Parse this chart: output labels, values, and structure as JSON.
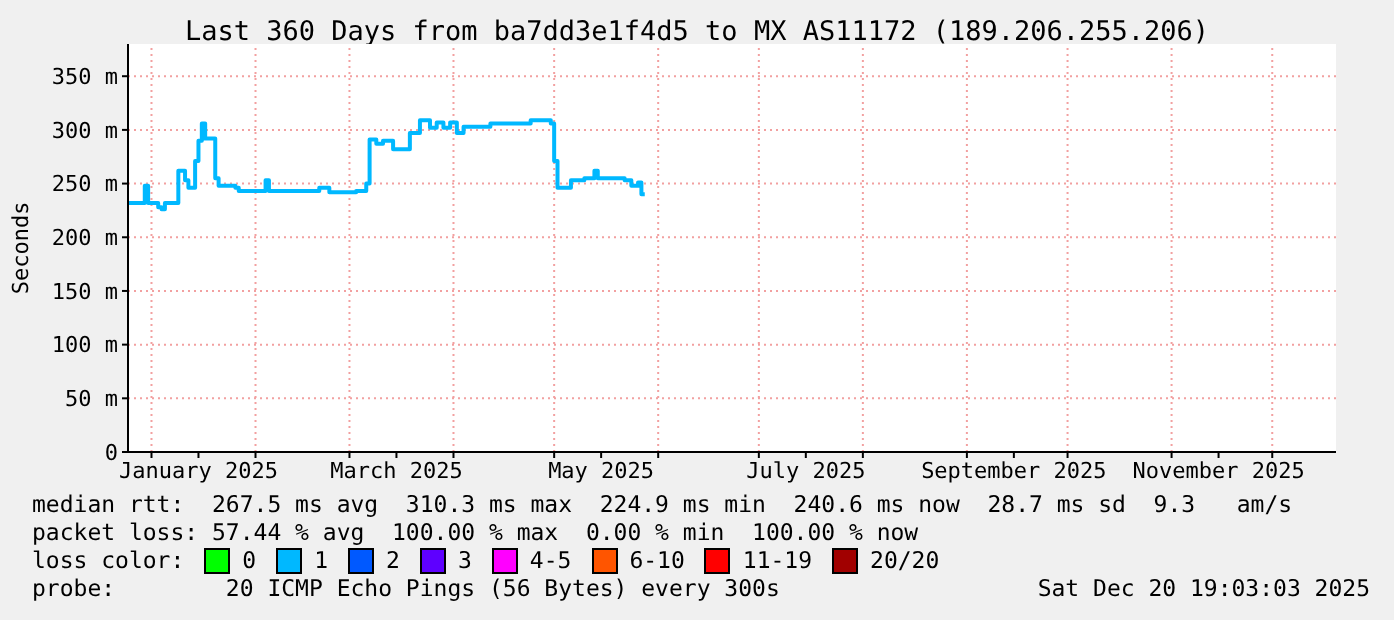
{
  "chart_data": {
    "type": "step",
    "title": "Last 360 Days from ba7dd3e1f4d5 to MX AS11172 (189.206.255.206)",
    "ylabel": "Seconds",
    "x": [
      "2024-12-25",
      "2024-12-30",
      "2024-12-31",
      "2025-01-03",
      "2025-01-04",
      "2025-01-05",
      "2025-01-09",
      "2025-01-11",
      "2025-01-12",
      "2025-01-14",
      "2025-01-15",
      "2025-01-16",
      "2025-01-17",
      "2025-01-20",
      "2025-01-21",
      "2025-01-26",
      "2025-01-27",
      "2025-02-04",
      "2025-02-05",
      "2025-02-20",
      "2025-02-23",
      "2025-03-03",
      "2025-03-06",
      "2025-03-07",
      "2025-03-09",
      "2025-03-11",
      "2025-03-14",
      "2025-03-19",
      "2025-03-22",
      "2025-03-25",
      "2025-03-27",
      "2025-03-29",
      "2025-03-31",
      "2025-04-02",
      "2025-04-04",
      "2025-04-12",
      "2025-04-24",
      "2025-04-30",
      "2025-05-01",
      "2025-05-02",
      "2025-05-06",
      "2025-05-10",
      "2025-05-13",
      "2025-05-14",
      "2025-05-22",
      "2025-05-24",
      "2025-05-26",
      "2025-05-27",
      "2025-05-28"
    ],
    "legend_title": "loss color:",
    "legend": "bottom",
    "series": [
      {
        "name": "0",
        "color": "#00ff00",
        "values": [
          null,
          null,
          null,
          null,
          null,
          null,
          null,
          null,
          null,
          null,
          null,
          null,
          null,
          null,
          null,
          null,
          null,
          null,
          null,
          null,
          null,
          null,
          null,
          null,
          null,
          null,
          null,
          null,
          null,
          null,
          null,
          null,
          null,
          null,
          null,
          null,
          null,
          null,
          null,
          null,
          null,
          null,
          null,
          null,
          null,
          null,
          null,
          null,
          null
        ]
      },
      {
        "name": "1",
        "color": "#00b8ff",
        "values": [
          232,
          248,
          232,
          228,
          226,
          232,
          262,
          253,
          246,
          271,
          290,
          306,
          292,
          255,
          248,
          246,
          243,
          253,
          243,
          246,
          242,
          243,
          250,
          291,
          287,
          290,
          282,
          297,
          309,
          302,
          307,
          302,
          307,
          297,
          303,
          306,
          309,
          306,
          271,
          246,
          253,
          255,
          262,
          255,
          253,
          248,
          251,
          240,
          240
        ]
      },
      {
        "name": "2",
        "color": "#0059ff",
        "values": [
          null,
          null,
          null,
          null,
          null,
          null,
          null,
          null,
          null,
          null,
          null,
          null,
          null,
          null,
          null,
          null,
          null,
          null,
          null,
          null,
          null,
          null,
          null,
          null,
          null,
          null,
          null,
          null,
          null,
          null,
          null,
          null,
          null,
          null,
          null,
          null,
          null,
          null,
          null,
          null,
          null,
          null,
          null,
          null,
          null,
          null,
          null,
          null,
          null
        ]
      },
      {
        "name": "3",
        "color": "#5e00ff",
        "values": [
          null,
          null,
          null,
          null,
          null,
          null,
          null,
          null,
          null,
          null,
          null,
          null,
          null,
          null,
          null,
          null,
          null,
          null,
          null,
          null,
          null,
          null,
          null,
          null,
          null,
          null,
          null,
          null,
          null,
          null,
          null,
          null,
          null,
          null,
          null,
          null,
          null,
          null,
          null,
          null,
          null,
          null,
          null,
          null,
          null,
          null,
          null,
          null,
          null
        ]
      },
      {
        "name": "4-5",
        "color": "#ff00ff",
        "values": [
          null,
          null,
          null,
          null,
          null,
          null,
          null,
          null,
          null,
          null,
          null,
          null,
          null,
          null,
          null,
          null,
          null,
          null,
          null,
          null,
          null,
          null,
          null,
          null,
          null,
          null,
          null,
          null,
          null,
          null,
          null,
          null,
          null,
          null,
          null,
          null,
          null,
          null,
          null,
          null,
          null,
          null,
          null,
          null,
          null,
          null,
          null,
          null,
          null
        ]
      },
      {
        "name": "6-10",
        "color": "#ff5500",
        "values": [
          null,
          null,
          null,
          null,
          null,
          null,
          null,
          null,
          null,
          null,
          null,
          null,
          null,
          null,
          null,
          null,
          null,
          null,
          null,
          null,
          null,
          null,
          null,
          null,
          null,
          null,
          null,
          null,
          null,
          null,
          null,
          null,
          null,
          null,
          null,
          null,
          null,
          null,
          null,
          null,
          null,
          null,
          null,
          null,
          null,
          null,
          null,
          null,
          null
        ]
      },
      {
        "name": "11-19",
        "color": "#ff0000",
        "values": [
          null,
          null,
          null,
          null,
          null,
          null,
          null,
          null,
          null,
          null,
          null,
          null,
          null,
          null,
          null,
          null,
          null,
          null,
          null,
          null,
          null,
          null,
          null,
          null,
          null,
          null,
          null,
          null,
          null,
          null,
          null,
          null,
          null,
          null,
          null,
          null,
          null,
          null,
          null,
          null,
          null,
          null,
          null,
          null,
          null,
          null,
          null,
          null,
          null
        ]
      },
      {
        "name": "20/20",
        "color": "#a10000",
        "values": [
          null,
          null,
          null,
          null,
          null,
          null,
          null,
          null,
          null,
          null,
          null,
          null,
          null,
          null,
          null,
          null,
          null,
          null,
          null,
          null,
          null,
          null,
          null,
          null,
          null,
          null,
          null,
          null,
          null,
          null,
          null,
          null,
          null,
          null,
          null,
          null,
          null,
          null,
          null,
          null,
          null,
          null,
          null,
          null,
          null,
          null,
          null,
          null,
          null
        ]
      }
    ],
    "xlim": [
      "2024-12-25",
      "2025-12-20"
    ],
    "xticks": [
      {
        "value": "2025-01-01",
        "label": null
      },
      {
        "value": "2025-01-15",
        "label": "January 2025"
      },
      {
        "value": "2025-02-01",
        "label": null
      },
      {
        "value": "2025-03-01",
        "label": null
      },
      {
        "value": "2025-03-15",
        "label": "March 2025"
      },
      {
        "value": "2025-04-01",
        "label": null
      },
      {
        "value": "2025-05-01",
        "label": null
      },
      {
        "value": "2025-05-15",
        "label": "May 2025"
      },
      {
        "value": "2025-06-01",
        "label": null
      },
      {
        "value": "2025-07-01",
        "label": null
      },
      {
        "value": "2025-07-15",
        "label": "July 2025"
      },
      {
        "value": "2025-08-01",
        "label": null
      },
      {
        "value": "2025-09-01",
        "label": null
      },
      {
        "value": "2025-09-15",
        "label": "September 2025"
      },
      {
        "value": "2025-10-01",
        "label": null
      },
      {
        "value": "2025-11-01",
        "label": null
      },
      {
        "value": "2025-11-15",
        "label": "November 2025"
      },
      {
        "value": "2025-12-01",
        "label": null
      }
    ],
    "ylim": [
      0,
      380
    ],
    "yticks": [
      0,
      {
        "value": 50,
        "label": "50 m"
      },
      {
        "value": 100,
        "label": "100 m"
      },
      {
        "value": 150,
        "label": "150 m"
      },
      {
        "value": 200,
        "label": "200 m"
      },
      {
        "value": 250,
        "label": "250 m"
      },
      {
        "value": 300,
        "label": "300 m"
      },
      {
        "value": 350,
        "label": "350 m"
      }
    ],
    "grid": true,
    "annotations": [
      "median rtt:  267.5 ms avg  310.3 ms max  224.9 ms min  240.6 ms now  28.7 ms sd  9.3   am/s",
      "packet loss: 57.44 % avg  100.00 % max  0.00 % min  100.00 % now",
      "probe:        20 ICMP Echo Pings (56 Bytes) every 300s",
      "Sat Dec 20 19:03:03 2025"
    ]
  }
}
